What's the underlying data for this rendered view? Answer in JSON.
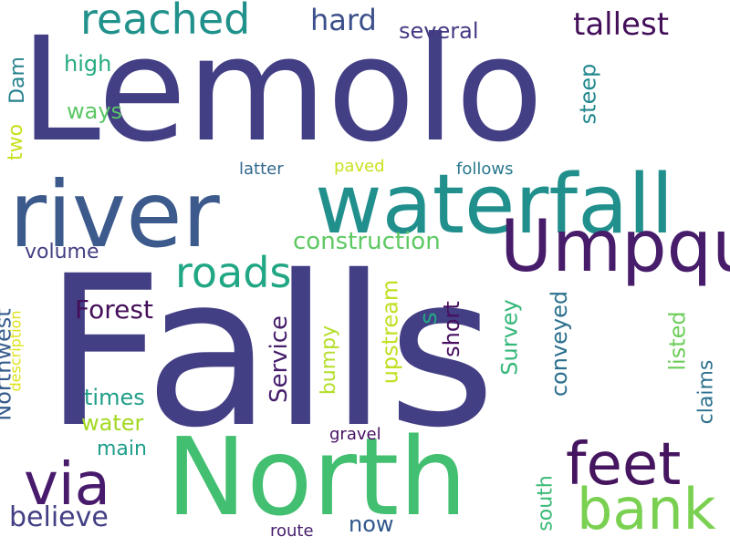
{
  "background": "#ffffff",
  "palette": [
    "#433f84",
    "#3c5a8c",
    "#2a788e",
    "#22a785",
    "#43bf71",
    "#7ad151",
    "#bddf26",
    "#440f59"
  ],
  "words": {
    "lemolo": {
      "text": "Lemolo",
      "color": "#433f84"
    },
    "falls": {
      "text": "Falls",
      "color": "#433f84"
    },
    "north": {
      "text": "North",
      "color": "#43bf71"
    },
    "river": {
      "text": "river",
      "color": "#3c5a8c"
    },
    "waterfall": {
      "text": "waterfall",
      "color": "#21908d"
    },
    "umpqua": {
      "text": "Umpqua",
      "color": "#471c6a"
    },
    "reached": {
      "text": "reached",
      "color": "#21918c"
    },
    "feet": {
      "text": "feet",
      "color": "#45155f"
    },
    "bank": {
      "text": "bank",
      "color": "#7ad151"
    },
    "via": {
      "text": "via",
      "color": "#481a6c"
    },
    "roads": {
      "text": "roads",
      "color": "#22a785"
    },
    "tallest": {
      "text": "tallest",
      "color": "#440f59"
    },
    "hard": {
      "text": "hard",
      "color": "#3b4f8a"
    },
    "several": {
      "text": "several",
      "color": "#443a83"
    },
    "construction": {
      "text": "construction",
      "color": "#5ec962"
    },
    "believe": {
      "text": "believe",
      "color": "#433f84"
    },
    "forest": {
      "text": "Forest",
      "color": "#440f59"
    },
    "times": {
      "text": "times",
      "color": "#1f9e89"
    },
    "water": {
      "text": "water",
      "color": "#a2d921"
    },
    "main": {
      "text": "main",
      "color": "#1f9e89"
    },
    "volume": {
      "text": "volume",
      "color": "#433f84"
    },
    "high": {
      "text": "high",
      "color": "#25ab81"
    },
    "ways": {
      "text": "ways",
      "color": "#58c764"
    },
    "latter": {
      "text": "latter",
      "color": "#31688e"
    },
    "paved": {
      "text": "paved",
      "color": "#cbe11e"
    },
    "follows": {
      "text": "follows",
      "color": "#2a788e"
    },
    "gravel": {
      "text": "gravel",
      "color": "#471164"
    },
    "route": {
      "text": "route",
      "color": "#461d6c"
    },
    "now": {
      "text": "now",
      "color": "#30568c"
    },
    "dam": {
      "text": "Dam",
      "color": "#26828e"
    },
    "two": {
      "text": "two",
      "color": "#c8e020"
    },
    "northwest": {
      "text": "Northwest",
      "color": "#365c8d"
    },
    "description": {
      "text": "description",
      "color": "#dde318"
    },
    "steep": {
      "text": "steep",
      "color": "#23898e"
    },
    "s": {
      "text": "s",
      "color": "#22a785"
    },
    "service": {
      "text": "Service",
      "color": "#461e6c"
    },
    "bumpy": {
      "text": "bumpy",
      "color": "#b5de2b"
    },
    "upstream": {
      "text": "upstream",
      "color": "#c2df23"
    },
    "short": {
      "text": "short",
      "color": "#470f5f"
    },
    "survey": {
      "text": "Survey",
      "color": "#35b779"
    },
    "conveyed": {
      "text": "conveyed",
      "color": "#2d708e"
    },
    "listed": {
      "text": "listed",
      "color": "#6ccd5a"
    },
    "claims": {
      "text": "claims",
      "color": "#2d708e"
    },
    "south": {
      "text": "south",
      "color": "#3aba76"
    }
  }
}
